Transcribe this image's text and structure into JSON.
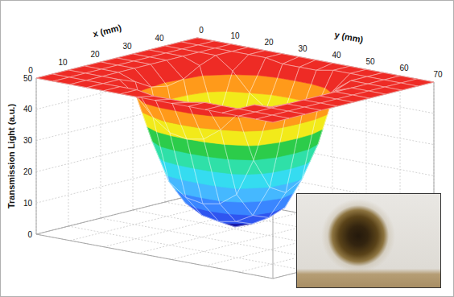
{
  "chart_data": {
    "type": "surface",
    "x_label": "x (mm)",
    "y_label": "y (mm)",
    "z_label": "Transmission Light (a.u.)",
    "x": [
      0,
      5,
      10,
      15,
      20,
      25,
      30,
      35,
      40,
      45,
      50
    ],
    "y": [
      0,
      5,
      10,
      15,
      20,
      25,
      30,
      35,
      40,
      45,
      50,
      55,
      60,
      65,
      70
    ],
    "z": [
      [
        50,
        50,
        50,
        50,
        50,
        50,
        50,
        50,
        50,
        50,
        50
      ],
      [
        50,
        50,
        50,
        50,
        50,
        50,
        50,
        50,
        50,
        50,
        50
      ],
      [
        50,
        50,
        50,
        50,
        50,
        50,
        50,
        50,
        50,
        50,
        50
      ],
      [
        50,
        50,
        50,
        48,
        45,
        44,
        45,
        48,
        50,
        50,
        50
      ],
      [
        50,
        50,
        46,
        30,
        20,
        17,
        20,
        30,
        46,
        50,
        50
      ],
      [
        50,
        50,
        40,
        18,
        10,
        8,
        10,
        18,
        40,
        50,
        50
      ],
      [
        50,
        49,
        36,
        14,
        7,
        5,
        7,
        14,
        36,
        49,
        50
      ],
      [
        50,
        49,
        35,
        13,
        6,
        3,
        6,
        13,
        35,
        49,
        50
      ],
      [
        50,
        49,
        36,
        14,
        7,
        5,
        7,
        14,
        36,
        49,
        50
      ],
      [
        50,
        50,
        40,
        18,
        10,
        8,
        10,
        18,
        40,
        50,
        50
      ],
      [
        50,
        50,
        46,
        30,
        20,
        17,
        20,
        30,
        46,
        50,
        50
      ],
      [
        50,
        50,
        50,
        48,
        45,
        44,
        45,
        48,
        50,
        50,
        50
      ],
      [
        50,
        50,
        50,
        50,
        50,
        50,
        50,
        50,
        50,
        50,
        50
      ],
      [
        50,
        50,
        50,
        50,
        50,
        50,
        50,
        50,
        50,
        50,
        50
      ],
      [
        50,
        50,
        50,
        50,
        50,
        50,
        50,
        50,
        50,
        50,
        50
      ]
    ],
    "xlim": [
      0,
      50
    ],
    "xticks": [
      0,
      10,
      20,
      30,
      40
    ],
    "ylim": [
      0,
      70
    ],
    "yticks": [
      0,
      10,
      20,
      30,
      40,
      50,
      60,
      70
    ],
    "zlim": [
      0,
      50
    ],
    "zticks": [
      0,
      10,
      20,
      30,
      40,
      50
    ],
    "grid": true
  }
}
